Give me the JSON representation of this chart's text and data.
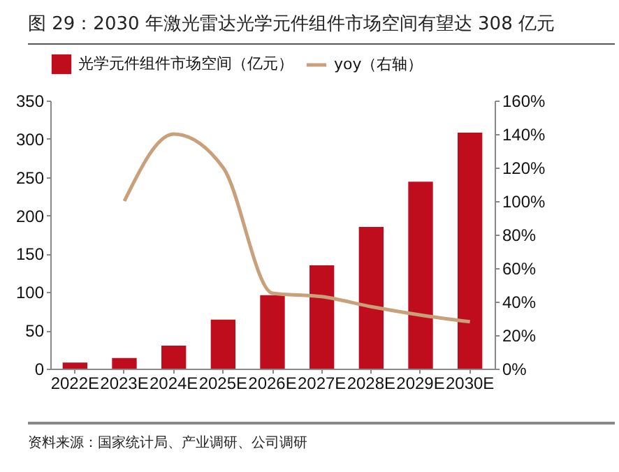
{
  "chart_data": {
    "type": "bar",
    "title": "图 29：2030 年激光雷达光学元件组件市场空间有望达 308 亿元",
    "annotations": [
      "资料来源：国家统计局、产业调研、公司调研"
    ],
    "categories": [
      "2022E",
      "2023E",
      "2024E",
      "2025E",
      "2026E",
      "2027E",
      "2028E",
      "2029E",
      "2030E"
    ],
    "series": [
      {
        "name": "光学元件组件市场空间（亿元）",
        "color": "#c00d1e",
        "values": [
          8,
          14,
          30,
          64,
          96,
          135,
          185,
          244,
          308
        ]
      },
      {
        "name": "yoy（右轴）",
        "type": "line",
        "axis": "y2",
        "color": "#c8a07a",
        "values": [
          null,
          100,
          140,
          120,
          45,
          43,
          37,
          32,
          28
        ]
      }
    ],
    "ylim": [
      0,
      350
    ],
    "yticks": [
      0,
      50,
      100,
      150,
      200,
      250,
      300,
      350
    ],
    "y2lim": [
      0,
      160
    ],
    "y2ticks": [
      {
        "value": 0,
        "label": "0%"
      },
      {
        "value": 20,
        "label": "20%"
      },
      {
        "value": 40,
        "label": "40%"
      },
      {
        "value": 60,
        "label": "60%"
      },
      {
        "value": 80,
        "label": "80%"
      },
      {
        "value": 100,
        "label": "100%"
      },
      {
        "value": 120,
        "label": "120%"
      },
      {
        "value": 140,
        "label": "140%"
      },
      {
        "value": 160,
        "label": "160%"
      }
    ],
    "legend": "top",
    "grid": false
  }
}
